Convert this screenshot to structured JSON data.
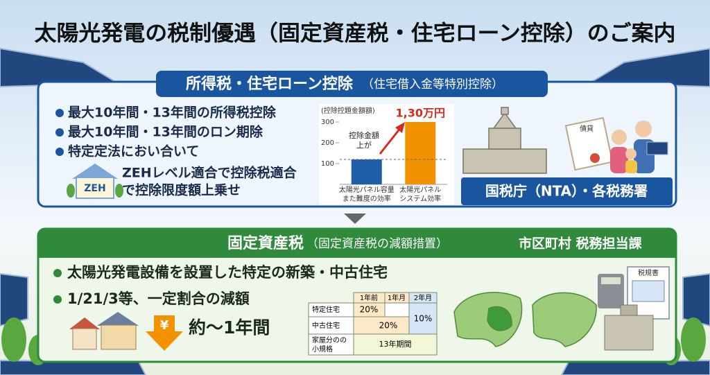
{
  "title": "太陽光発電の税制優遇（固定資産税・住宅ローン控除）のご案内",
  "income_tax": {
    "heading": "所得税・住宅ローン控除",
    "heading_note": "（住宅借入金等特別控除）",
    "bullets": [
      "最大10年間・13年間の所得税控除",
      "最大10年間・13年間のロン期除",
      "特定定法におい合いて"
    ],
    "zeh_icon": "ZEH",
    "zeh_text": [
      "ZEHレベル適合で控除税適合",
      "で控除限度額上乗せ"
    ],
    "chart": {
      "type": "bar",
      "title": "(控除控題金額額)",
      "categories": [
        [
          "太陽光パネル容量",
          "また難度の効率"
        ],
        [
          "太陽光パネル",
          "システム効率"
        ]
      ],
      "values": [
        120,
        300
      ],
      "colors": [
        "#1f5fa8",
        "#f39200"
      ],
      "ylim": [
        0,
        300
      ],
      "yticks": [
        100,
        200,
        300
      ],
      "annotation": "1,30万円",
      "callout": [
        "控除金額",
        "上が"
      ]
    },
    "certificate_label": "債貸",
    "agency": "国税庁（NTA）・各税務署"
  },
  "property_tax": {
    "heading": "固定資産税",
    "heading_note": "（固定資産税の減額措置）",
    "office": "市区町村 税務担当課",
    "bullets": [
      "太陽光発電設備を設置した特定の新築・中古住宅",
      "1/21/3等、一定割合の減額"
    ],
    "yen": "¥",
    "period": "約～1年間",
    "table": {
      "header": [
        "1年前",
        "1年月",
        "2年月"
      ],
      "row_labels": [
        "特定住宅",
        "中古住宅",
        [
          "家屋分のの",
          "小規格"
        ]
      ],
      "cells": [
        "20%",
        "20%",
        "10%",
        "13年期間"
      ]
    },
    "document_label": "税規書"
  }
}
